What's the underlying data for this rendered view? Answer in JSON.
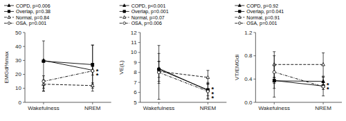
{
  "chart_data": [
    {
      "type": "line",
      "y_label": "EMGdi%max",
      "categories": [
        "Wakefulness",
        "NREM"
      ],
      "ylim": [
        0,
        50
      ],
      "yticks": [
        0,
        10,
        20,
        30,
        40,
        50
      ],
      "grid": false,
      "legend": "upper left",
      "series": [
        {
          "name": "COPD, p=0.006",
          "values": [
            30,
            23
          ],
          "error_plus": [
            14,
            18
          ],
          "error_minus": [
            22,
            15
          ],
          "marker": "triangle-filled",
          "line_style": "solid",
          "color": "#000000"
        },
        {
          "name": "Overlap, p=0.38",
          "values": [
            29.5,
            27
          ],
          "error_plus": [
            0,
            14
          ],
          "error_minus": [
            0,
            14
          ],
          "marker": "square-filled",
          "line_style": "solid",
          "color": "#000000"
        },
        {
          "name": "Normal, p=0.84",
          "values": [
            13,
            12
          ],
          "error_plus": [
            3,
            2
          ],
          "error_minus": [
            3,
            2
          ],
          "marker": "triangle-open",
          "line_style": "dashed",
          "color": "#000000"
        },
        {
          "name": "OSA, p=0.001",
          "values": [
            15,
            22.5
          ],
          "error_plus": [
            4,
            3
          ],
          "error_minus": [
            7,
            3
          ],
          "marker": "circle-open",
          "line_style": "dashdot",
          "color": "#000000"
        }
      ],
      "annotations": [
        {
          "text": "*",
          "category": "NREM",
          "y": 22.5
        },
        {
          "text": "*",
          "category": "NREM",
          "y": 19.5
        }
      ]
    },
    {
      "type": "line",
      "y_label": "VE(L)",
      "categories": [
        "Wakefulness",
        "NREM"
      ],
      "ylim": [
        5,
        12
      ],
      "yticks": [
        5,
        6,
        7,
        8,
        9,
        10,
        11,
        12
      ],
      "grid": false,
      "legend": "upper left",
      "series": [
        {
          "name": "COPD, p<0.001",
          "values": [
            8.4,
            6.2
          ],
          "error_plus": [
            1.5,
            0.8
          ],
          "error_minus": [
            1.5,
            0.8
          ],
          "marker": "triangle-filled",
          "line_style": "solid",
          "color": "#000000"
        },
        {
          "name": "Overlap, p=0.001",
          "values": [
            8.3,
            6.25
          ],
          "error_plus": [
            0.8,
            0.6
          ],
          "error_minus": [
            0.8,
            0.6
          ],
          "marker": "square-filled",
          "line_style": "solid",
          "color": "#000000"
        },
        {
          "name": "Normal, p=0.07",
          "values": [
            8.1,
            7.5
          ],
          "error_plus": [
            1.0,
            0.7
          ],
          "error_minus": [
            1.0,
            0.7
          ],
          "marker": "triangle-open",
          "line_style": "dashed",
          "color": "#000000"
        },
        {
          "name": "OSA, p=0.006",
          "values": [
            8.0,
            6.1
          ],
          "error_plus": [
            2.7,
            0.8
          ],
          "error_minus": [
            2.7,
            0.8
          ],
          "marker": "circle-open",
          "line_style": "dashdot",
          "color": "#000000"
        }
      ],
      "annotations": [
        {
          "text": "*",
          "category": "NREM",
          "y": 6.35
        },
        {
          "text": "*",
          "category": "NREM",
          "y": 5.85
        },
        {
          "text": "*",
          "category": "NREM",
          "y": 5.45
        }
      ]
    },
    {
      "type": "line",
      "y_label": "VT/EMGdi",
      "categories": [
        "Wakefulness",
        "NREM"
      ],
      "ylim": [
        0,
        1.2
      ],
      "yticks": [
        {
          "value": 0,
          "label": "0.0"
        },
        0.4,
        0.8,
        1.2
      ],
      "grid": false,
      "legend": "upper left",
      "series": [
        {
          "name": "COPD, p=0.92",
          "values": [
            0.37,
            0.36
          ],
          "error_plus": [
            0.28,
            0.08
          ],
          "error_minus": [
            0.28,
            0.08
          ],
          "marker": "triangle-filled",
          "line_style": "solid",
          "color": "#000000"
        },
        {
          "name": "Overlap, p=0.041",
          "values": [
            0.375,
            0.28
          ],
          "error_plus": [
            0.05,
            0.06
          ],
          "error_minus": [
            0.05,
            0.06
          ],
          "marker": "square-filled",
          "line_style": "solid",
          "color": "#000000"
        },
        {
          "name": "Normal, p=0.91",
          "values": [
            0.65,
            0.65
          ],
          "error_plus": [
            0.22,
            0.2
          ],
          "error_minus": [
            0.22,
            0.2
          ],
          "marker": "triangle-open",
          "line_style": "dashed",
          "color": "#000000"
        },
        {
          "name": "OSA, p=0.001",
          "values": [
            0.52,
            0.27
          ],
          "error_plus": [
            0.28,
            0.16
          ],
          "error_minus": [
            0.28,
            0.16
          ],
          "marker": "circle-open",
          "line_style": "dashdot",
          "color": "#000000"
        }
      ],
      "annotations": [
        {
          "text": "*",
          "category": "NREM",
          "y": 0.3
        },
        {
          "text": "*",
          "category": "NREM",
          "y": 0.22
        }
      ]
    }
  ]
}
